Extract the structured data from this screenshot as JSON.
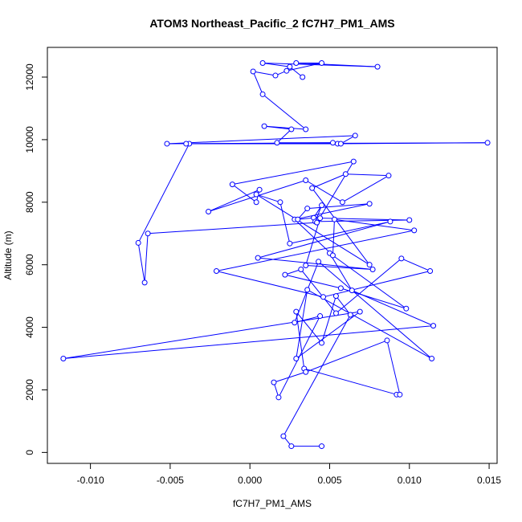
{
  "chart_data": {
    "type": "line",
    "title": "ATOM3 Northeast_Pacific_2 fC7H7_PM1_AMS",
    "xlabel": "fC7H7_PM1_AMS",
    "ylabel": "Altitude (m)",
    "xlim": [
      -0.0127,
      0.0155
    ],
    "ylim": [
      -350,
      12950
    ],
    "x_ticks": [
      -0.01,
      -0.005,
      0.0,
      0.005,
      0.01,
      0.015
    ],
    "x_tick_labels": [
      "-0.010",
      "-0.005",
      "0.000",
      "0.005",
      "0.010",
      "0.015"
    ],
    "y_ticks": [
      0,
      2000,
      4000,
      6000,
      8000,
      10000,
      12000
    ],
    "y_tick_labels": [
      "0",
      "2000",
      "4000",
      "6000",
      "8000",
      "10000",
      "12000"
    ],
    "grid": false,
    "line_color": "#0000ff",
    "marker": "open-circle",
    "series": [
      {
        "x": [
          0.0045,
          0.0026,
          0.0021,
          0.0063,
          0.0054,
          0.0045,
          0.0029,
          0.0034,
          0.0092,
          0.0094,
          0.0086,
          0.0035,
          0.0015,
          0.0018,
          0.0044,
          0.0028,
          0.0043,
          0.0114,
          0.0036,
          0.0029,
          0.0069,
          -0.0117,
          0.0115,
          0.0064,
          0.005,
          0.0098,
          0.0057,
          0.0022,
          0.0032,
          0.0054,
          0.0095,
          0.0113,
          0.0046,
          -0.0021,
          0.0103,
          0.0053,
          0.0052,
          0.0028,
          0.0075,
          0.0036,
          0.003,
          0.004,
          0.0045,
          0.0041,
          0.01,
          0.0044,
          0.0035,
          0.0077,
          0.0005,
          0.0088,
          0.0025,
          0.0019,
          0.0004,
          0.0075,
          0.0039,
          0.006,
          0.0087,
          0.0058,
          0.0035,
          -0.0026,
          0.0006,
          0.0004,
          -0.0011,
          0.0065,
          0.0042,
          -0.0064,
          -0.0066,
          -0.007,
          -0.0038,
          0.0055,
          0.0149,
          -0.004,
          0.0057,
          0.0066,
          -0.0052,
          0.0052,
          0.0017,
          0.0026,
          0.0009,
          0.0035,
          0.0008,
          0.0002,
          0.0016,
          0.0023,
          0.0045,
          0.0029,
          0.008,
          0.0008,
          0.0025,
          0.0033
        ],
        "y": [
          200,
          200,
          520,
          4400,
          5000,
          3500,
          4500,
          2680,
          1850,
          1850,
          3580,
          2570,
          2240,
          1760,
          4360,
          4150,
          6100,
          3000,
          5200,
          3000,
          4500,
          3000,
          4050,
          5180,
          6370,
          4600,
          5250,
          5680,
          5850,
          4450,
          6200,
          5800,
          4970,
          5800,
          7100,
          7450,
          6300,
          7450,
          7950,
          7800,
          7450,
          7500,
          7900,
          7380,
          7430,
          7490,
          5980,
          5850,
          6220,
          7380,
          6680,
          8000,
          8250,
          6000,
          8450,
          8900,
          8850,
          8000,
          8700,
          7700,
          8400,
          8000,
          8570,
          9300,
          7350,
          7000,
          5430,
          6700,
          9870,
          9870,
          9900,
          9870,
          9870,
          10130,
          9870,
          9900,
          9900,
          10330,
          10430,
          10330,
          11450,
          12180,
          12050,
          12200,
          12450,
          12450,
          12330,
          12450,
          12330,
          12000
        ]
      }
    ]
  }
}
